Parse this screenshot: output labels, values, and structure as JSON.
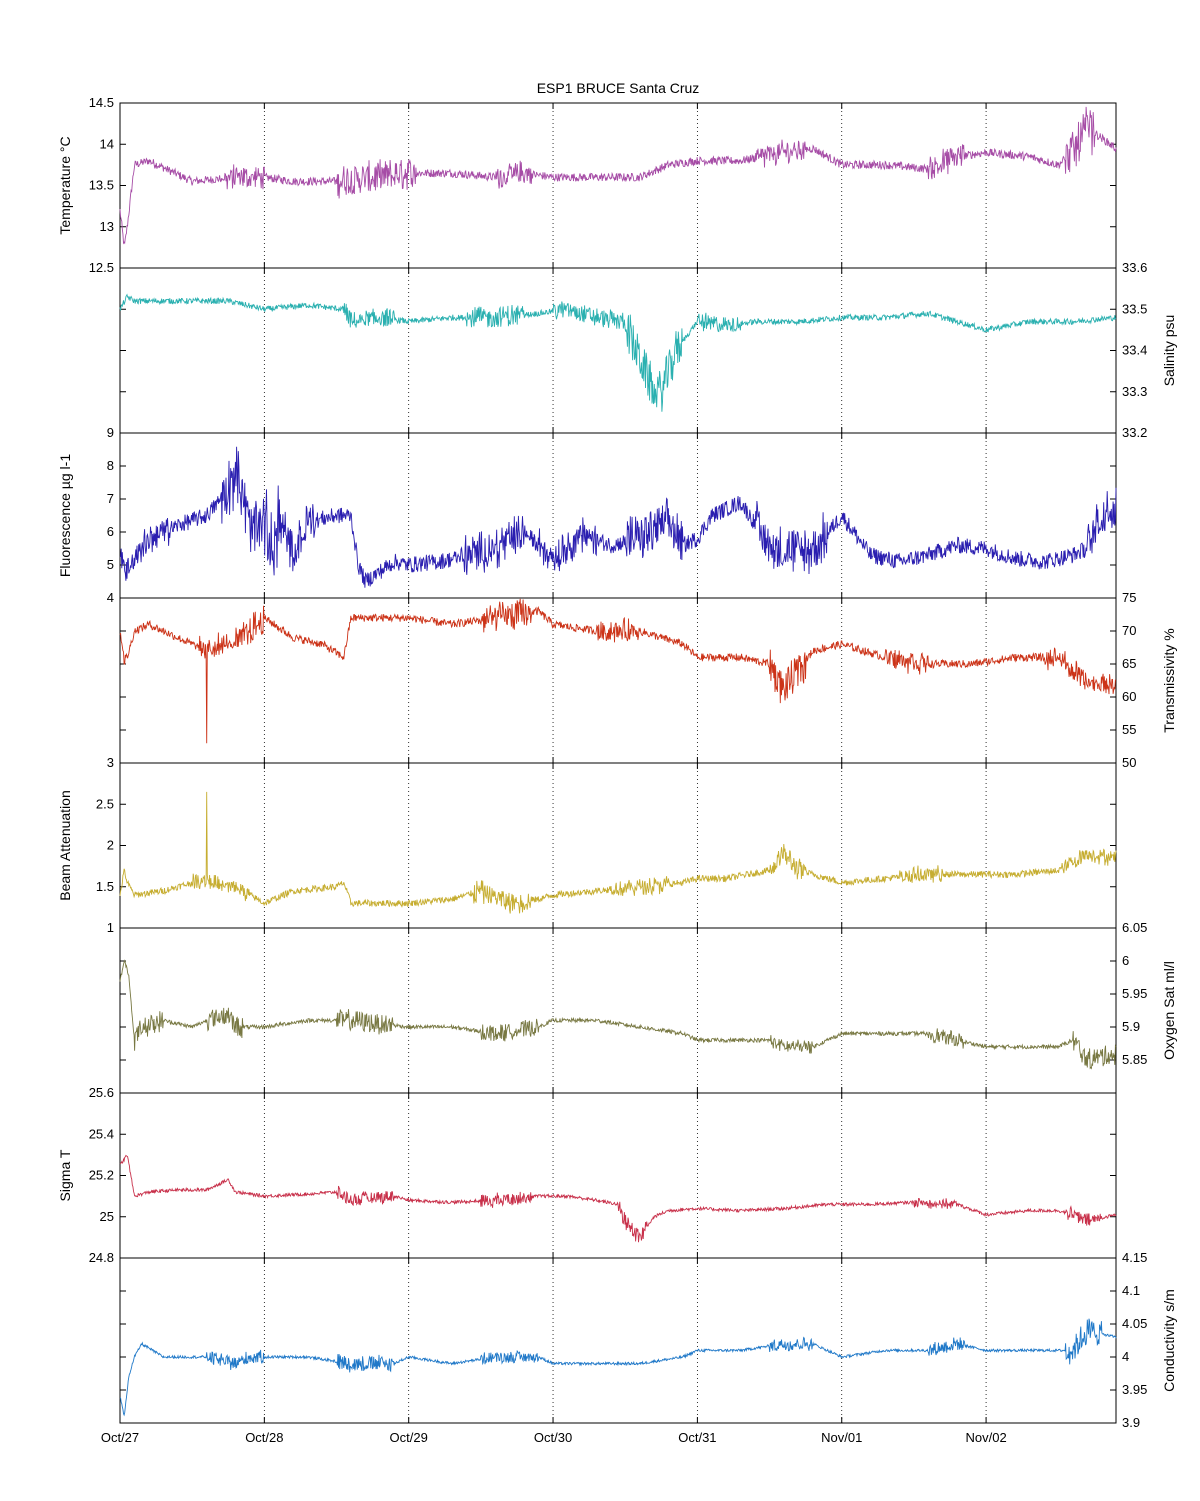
{
  "chart_data": {
    "type": "line",
    "title": "ESP1 BRUCE Santa Cruz",
    "x_axis": {
      "ticks": [
        "Oct/27",
        "Oct/28",
        "Oct/29",
        "Oct/30",
        "Oct/31",
        "Nov/01",
        "Nov/02"
      ],
      "range_days": [
        0,
        6.9
      ],
      "grid": "dotted vertical"
    },
    "panels": [
      {
        "name": "temperature",
        "ylabel": "Temperature °C",
        "axis_side": "left",
        "color": "#a64ca6",
        "ylim": [
          12.5,
          14.5
        ],
        "yticks": [
          "12.5",
          "13",
          "13.5",
          "14",
          "14.5"
        ],
        "series": {
          "x": [
            0,
            0.03,
            0.05,
            0.1,
            0.2,
            0.5,
            0.8,
            1.0,
            1.2,
            1.5,
            1.8,
            2.0,
            2.3,
            2.6,
            2.8,
            3.0,
            3.3,
            3.6,
            3.8,
            4.0,
            4.3,
            4.6,
            4.8,
            5.0,
            5.3,
            5.6,
            5.8,
            6.0,
            6.3,
            6.5,
            6.6,
            6.7,
            6.9
          ],
          "y": [
            13.2,
            12.75,
            13.0,
            13.75,
            13.8,
            13.55,
            13.6,
            13.6,
            13.55,
            13.55,
            13.6,
            13.65,
            13.65,
            13.6,
            13.65,
            13.6,
            13.6,
            13.6,
            13.75,
            13.8,
            13.8,
            13.9,
            13.95,
            13.75,
            13.75,
            13.7,
            13.85,
            13.9,
            13.85,
            13.75,
            13.9,
            14.2,
            13.95
          ],
          "noise": 0.05,
          "spiky": [
            [
              0.7,
              1.0,
              0.12
            ],
            [
              1.5,
              2.05,
              0.18
            ],
            [
              2.6,
              2.85,
              0.12
            ],
            [
              4.4,
              4.75,
              0.12
            ],
            [
              5.6,
              5.85,
              0.14
            ],
            [
              6.55,
              6.75,
              0.25
            ]
          ]
        }
      },
      {
        "name": "salinity",
        "ylabel": "Salinity psu",
        "axis_side": "right",
        "color": "#2ab0b0",
        "ylim": [
          33.2,
          33.6
        ],
        "yticks": [
          "33.2",
          "33.3",
          "33.4",
          "33.5",
          "33.6"
        ],
        "series": {
          "x": [
            0,
            0.05,
            0.1,
            0.3,
            0.6,
            0.75,
            1.0,
            1.3,
            1.55,
            1.6,
            1.8,
            2.0,
            2.3,
            2.6,
            2.9,
            3.1,
            3.3,
            3.5,
            3.55,
            3.7,
            3.75,
            3.85,
            4.0,
            4.2,
            4.4,
            4.7,
            5.0,
            5.3,
            5.6,
            5.8,
            6.0,
            6.3,
            6.6,
            6.9
          ],
          "y": [
            33.5,
            33.53,
            33.52,
            33.52,
            33.52,
            33.52,
            33.5,
            33.51,
            33.5,
            33.47,
            33.48,
            33.47,
            33.48,
            33.48,
            33.49,
            33.5,
            33.48,
            33.47,
            33.42,
            33.3,
            33.3,
            33.4,
            33.47,
            33.46,
            33.47,
            33.47,
            33.48,
            33.48,
            33.49,
            33.47,
            33.45,
            33.47,
            33.47,
            33.48
          ],
          "noise": 0.007,
          "spiky": [
            [
              1.55,
              1.9,
              0.02
            ],
            [
              2.4,
              2.8,
              0.025
            ],
            [
              3.0,
              3.5,
              0.02
            ],
            [
              3.5,
              3.9,
              0.05
            ],
            [
              4.0,
              4.3,
              0.02
            ]
          ]
        }
      },
      {
        "name": "fluorescence",
        "ylabel": "Fluorescence µg l-1",
        "axis_side": "left",
        "color": "#2a1eb0",
        "ylim": [
          4,
          9
        ],
        "yticks": [
          "4",
          "5",
          "6",
          "7",
          "8",
          "9"
        ],
        "series": {
          "x": [
            0,
            0.05,
            0.2,
            0.4,
            0.6,
            0.7,
            0.8,
            0.85,
            0.9,
            1.0,
            1.05,
            1.1,
            1.2,
            1.3,
            1.5,
            1.6,
            1.65,
            1.7,
            1.9,
            2.0,
            2.2,
            2.45,
            2.6,
            2.8,
            3.0,
            3.2,
            3.4,
            3.6,
            3.8,
            3.9,
            4.0,
            4.1,
            4.3,
            4.5,
            4.6,
            4.8,
            5.0,
            5.2,
            5.4,
            5.6,
            5.8,
            6.0,
            6.2,
            6.4,
            6.5,
            6.6,
            6.7,
            6.8,
            6.9
          ],
          "y": [
            5.2,
            4.9,
            5.8,
            6.2,
            6.5,
            7.0,
            7.8,
            7.2,
            6.0,
            6.3,
            5.5,
            6.4,
            5.2,
            6.3,
            6.5,
            6.5,
            5.0,
            4.5,
            5.1,
            5.0,
            5.1,
            5.3,
            5.5,
            6.0,
            5.2,
            5.9,
            5.6,
            5.8,
            6.3,
            5.6,
            5.8,
            6.5,
            6.9,
            5.6,
            5.4,
            5.4,
            6.5,
            5.3,
            5.1,
            5.3,
            5.6,
            5.5,
            5.2,
            5.1,
            5.2,
            5.3,
            5.5,
            6.5,
            6.8
          ],
          "noise": 0.25,
          "spiky": [
            [
              0.0,
              0.35,
              0.3
            ],
            [
              0.7,
              1.1,
              0.8
            ],
            [
              1.0,
              1.35,
              0.6
            ],
            [
              2.35,
              2.8,
              0.5
            ],
            [
              2.9,
              3.3,
              0.4
            ],
            [
              3.5,
              3.9,
              0.6
            ],
            [
              4.4,
              4.9,
              0.6
            ],
            [
              6.7,
              6.9,
              0.6
            ]
          ]
        }
      },
      {
        "name": "transmissivity",
        "ylabel": "Transmissivity %",
        "axis_side": "right",
        "color": "#cc3318",
        "ylim": [
          50,
          75
        ],
        "yticks": [
          "50",
          "55",
          "60",
          "65",
          "70",
          "75"
        ],
        "series": {
          "x": [
            0,
            0.03,
            0.05,
            0.1,
            0.2,
            0.4,
            0.6,
            0.7,
            0.8,
            1.0,
            1.2,
            1.4,
            1.55,
            1.6,
            2.0,
            2.3,
            2.6,
            2.9,
            3.0,
            3.3,
            3.6,
            3.9,
            4.0,
            4.3,
            4.5,
            4.6,
            4.8,
            5.0,
            5.3,
            5.6,
            5.9,
            6.2,
            6.5,
            6.7,
            6.9
          ],
          "y": [
            70,
            66,
            66,
            70,
            71,
            69,
            67,
            68,
            68,
            72,
            69,
            68,
            66,
            72,
            72,
            71,
            72,
            73,
            71,
            70,
            70,
            68,
            66,
            66,
            65,
            61,
            67,
            68,
            66,
            65,
            65,
            66,
            66,
            62,
            62
          ],
          "noise": 0.6,
          "spiky": [
            [
              0.55,
              0.75,
              1.5
            ],
            [
              0.8,
              1.0,
              2.0
            ],
            [
              2.5,
              2.85,
              2.0
            ],
            [
              3.3,
              3.6,
              1.5
            ],
            [
              4.5,
              4.75,
              2.5
            ],
            [
              5.3,
              5.6,
              1.5
            ],
            [
              6.4,
              6.9,
              1.5
            ]
          ],
          "drops": [
            [
              0.6,
              53
            ],
            [
              0.03,
              65
            ]
          ]
        }
      },
      {
        "name": "beam_attenuation",
        "ylabel": "Beam Attenuation",
        "axis_side": "left",
        "color": "#c6ad30",
        "ylim": [
          1,
          3
        ],
        "yticks": [
          "1",
          "1.5",
          "2",
          "2.5",
          "3"
        ],
        "series": {
          "x": [
            0,
            0.03,
            0.05,
            0.1,
            0.3,
            0.5,
            0.6,
            0.7,
            0.8,
            0.9,
            1.0,
            1.2,
            1.5,
            1.55,
            1.6,
            2.0,
            2.3,
            2.5,
            2.7,
            2.9,
            3.0,
            3.3,
            3.6,
            3.9,
            4.0,
            4.2,
            4.5,
            4.6,
            4.7,
            4.8,
            5.0,
            5.3,
            5.6,
            5.9,
            6.2,
            6.5,
            6.7,
            6.9
          ],
          "y": [
            1.4,
            1.7,
            1.55,
            1.4,
            1.45,
            1.55,
            1.6,
            1.5,
            1.5,
            1.4,
            1.3,
            1.45,
            1.5,
            1.55,
            1.3,
            1.3,
            1.35,
            1.45,
            1.3,
            1.35,
            1.4,
            1.45,
            1.5,
            1.55,
            1.6,
            1.6,
            1.7,
            1.9,
            1.7,
            1.65,
            1.55,
            1.6,
            1.65,
            1.65,
            1.65,
            1.7,
            1.9,
            1.85
          ],
          "noise": 0.04,
          "spiky": [
            [
              0.5,
              0.9,
              0.08
            ],
            [
              2.45,
              2.85,
              0.12
            ],
            [
              3.4,
              3.8,
              0.08
            ],
            [
              4.5,
              4.75,
              0.12
            ],
            [
              5.4,
              5.7,
              0.08
            ],
            [
              6.5,
              6.9,
              0.08
            ]
          ],
          "drops": [
            [
              0.6,
              2.65
            ]
          ]
        }
      },
      {
        "name": "oxygen_sat",
        "ylabel": "Oxygen Sat ml/l",
        "axis_side": "right",
        "color": "#787842",
        "ylim": [
          5.8,
          6.05
        ],
        "yticks": [
          "5.85",
          "5.9",
          "5.95",
          "6",
          "6.05"
        ],
        "series": {
          "x": [
            0,
            0.03,
            0.06,
            0.1,
            0.15,
            0.3,
            0.5,
            0.6,
            0.75,
            0.8,
            1.0,
            1.3,
            1.6,
            2.0,
            2.3,
            2.6,
            2.9,
            3.0,
            3.3,
            3.6,
            3.9,
            4.0,
            4.3,
            4.5,
            4.6,
            4.8,
            5.0,
            5.3,
            5.6,
            5.8,
            6.0,
            6.3,
            6.5,
            6.6,
            6.7,
            6.9
          ],
          "y": [
            5.97,
            6.0,
            5.98,
            5.88,
            5.9,
            5.91,
            5.9,
            5.91,
            5.92,
            5.9,
            5.9,
            5.91,
            5.91,
            5.9,
            5.9,
            5.89,
            5.9,
            5.91,
            5.91,
            5.9,
            5.89,
            5.88,
            5.88,
            5.88,
            5.87,
            5.87,
            5.89,
            5.89,
            5.89,
            5.88,
            5.87,
            5.87,
            5.87,
            5.88,
            5.85,
            5.86
          ],
          "noise": 0.003,
          "spiky": [
            [
              0.1,
              0.3,
              0.015
            ],
            [
              0.6,
              0.85,
              0.015
            ],
            [
              1.5,
              1.9,
              0.015
            ],
            [
              2.5,
              2.9,
              0.012
            ],
            [
              4.5,
              4.8,
              0.01
            ],
            [
              5.6,
              5.85,
              0.01
            ],
            [
              6.6,
              6.9,
              0.015
            ]
          ]
        }
      },
      {
        "name": "sigma_t",
        "ylabel": "Sigma T",
        "axis_side": "left",
        "color": "#c8304a",
        "ylim": [
          24.8,
          25.6
        ],
        "yticks": [
          "24.8",
          "25",
          "25.2",
          "25.4",
          "25.6"
        ],
        "series": {
          "x": [
            0,
            0.05,
            0.1,
            0.2,
            0.4,
            0.6,
            0.75,
            0.8,
            1.0,
            1.3,
            1.5,
            1.6,
            1.9,
            2.0,
            2.3,
            2.6,
            2.9,
            3.1,
            3.3,
            3.45,
            3.5,
            3.6,
            3.7,
            3.8,
            4.0,
            4.3,
            4.6,
            4.9,
            5.2,
            5.5,
            5.8,
            6.0,
            6.3,
            6.5,
            6.6,
            6.7,
            6.9
          ],
          "y": [
            25.25,
            25.3,
            25.1,
            25.12,
            25.13,
            25.13,
            25.18,
            25.12,
            25.1,
            25.11,
            25.12,
            25.08,
            25.1,
            25.08,
            25.07,
            25.08,
            25.1,
            25.1,
            25.08,
            25.06,
            24.98,
            24.9,
            25.0,
            25.03,
            25.04,
            25.03,
            25.04,
            25.06,
            25.06,
            25.07,
            25.06,
            25.01,
            25.03,
            25.03,
            25.01,
            24.98,
            25.01
          ],
          "noise": 0.008,
          "spiky": [
            [
              1.5,
              1.9,
              0.03
            ],
            [
              2.5,
              2.85,
              0.03
            ],
            [
              3.45,
              3.65,
              0.04
            ],
            [
              5.5,
              5.8,
              0.02
            ],
            [
              6.55,
              6.8,
              0.03
            ]
          ]
        }
      },
      {
        "name": "conductivity",
        "ylabel": "Conductivity s/m",
        "axis_side": "right",
        "color": "#1f78c8",
        "ylim": [
          3.9,
          4.15
        ],
        "yticks": [
          "3.9",
          "3.95",
          "4",
          "4.05",
          "4.1",
          "4.15"
        ],
        "series": {
          "x": [
            0,
            0.03,
            0.06,
            0.1,
            0.15,
            0.3,
            0.6,
            0.8,
            0.9,
            1.0,
            1.3,
            1.6,
            1.9,
            2.0,
            2.3,
            2.6,
            2.9,
            3.0,
            3.3,
            3.6,
            3.9,
            4.0,
            4.3,
            4.6,
            4.8,
            5.0,
            5.3,
            5.6,
            5.8,
            6.0,
            6.3,
            6.5,
            6.6,
            6.7,
            6.9
          ],
          "y": [
            3.94,
            3.91,
            3.97,
            4.0,
            4.02,
            4.0,
            4.0,
            3.99,
            4.0,
            4.0,
            4.0,
            3.99,
            3.99,
            4.0,
            3.99,
            4.0,
            4.0,
            3.99,
            3.99,
            3.99,
            4.0,
            4.01,
            4.01,
            4.02,
            4.02,
            4.0,
            4.01,
            4.01,
            4.02,
            4.01,
            4.01,
            4.01,
            4.01,
            4.04,
            4.03
          ],
          "noise": 0.002,
          "spiky": [
            [
              0.6,
              1.0,
              0.01
            ],
            [
              1.5,
              1.9,
              0.012
            ],
            [
              2.5,
              2.9,
              0.008
            ],
            [
              4.5,
              4.8,
              0.01
            ],
            [
              5.6,
              5.85,
              0.01
            ],
            [
              6.55,
              6.8,
              0.02
            ]
          ]
        }
      }
    ]
  }
}
